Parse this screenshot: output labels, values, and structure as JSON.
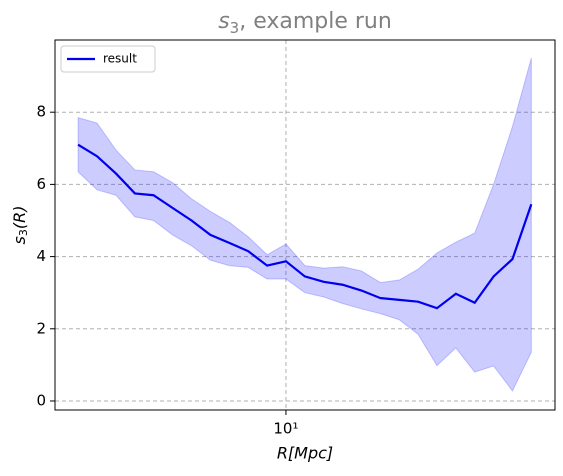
{
  "chart_data": {
    "type": "line",
    "title": {
      "symbol": "s",
      "subscript": "3",
      "text": ", example run"
    },
    "x_label": "R[Mpc]",
    "y_label": {
      "symbol": "s",
      "subscript": "3",
      "text": "(R)"
    },
    "x": [
      3.2,
      3.55,
      3.94,
      4.37,
      4.84,
      5.37,
      5.96,
      6.61,
      7.33,
      8.13,
      9.02,
      10.0,
      11.09,
      12.3,
      13.64,
      15.13,
      16.78,
      18.61,
      20.63,
      22.88,
      25.38,
      28.14,
      31.21,
      34.61,
      38.38
    ],
    "series": [
      {
        "name": "result",
        "color": "#0000ee",
        "band_color": "#0000ff",
        "values": [
          7.1,
          6.78,
          6.3,
          5.75,
          5.7,
          5.35,
          5.0,
          4.6,
          4.38,
          4.15,
          3.75,
          3.87,
          3.45,
          3.3,
          3.22,
          3.06,
          2.85,
          2.8,
          2.75,
          2.57,
          2.97,
          2.72,
          3.45,
          3.93,
          5.45
        ],
        "upper": [
          7.85,
          7.7,
          6.95,
          6.4,
          6.35,
          6.05,
          5.6,
          5.25,
          4.95,
          4.55,
          4.05,
          4.35,
          3.75,
          3.68,
          3.72,
          3.6,
          3.28,
          3.35,
          3.65,
          4.1,
          4.4,
          4.65,
          6.0,
          7.6,
          9.5
        ],
        "lower": [
          6.35,
          5.85,
          5.7,
          5.1,
          5.0,
          4.6,
          4.3,
          3.9,
          3.75,
          3.7,
          3.38,
          3.38,
          3.0,
          2.88,
          2.7,
          2.55,
          2.42,
          2.25,
          1.85,
          0.98,
          1.47,
          0.8,
          0.97,
          0.28,
          1.35
        ]
      }
    ],
    "xscale": "log",
    "xlim": [
      2.82,
      43.7
    ],
    "xticks": [
      {
        "value": 10,
        "label": "10¹"
      }
    ],
    "ylim": [
      -0.25,
      10.0
    ],
    "yticks": [
      0,
      2,
      4,
      6,
      8
    ],
    "grid": true,
    "legend": "upper left"
  }
}
